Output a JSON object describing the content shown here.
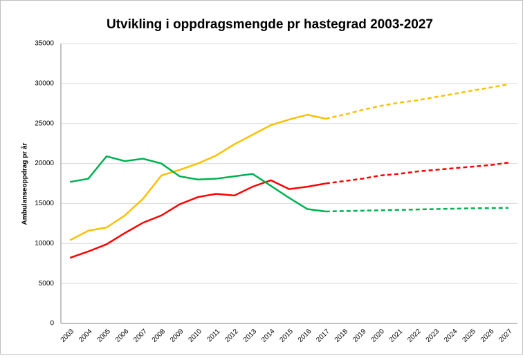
{
  "chart_data": {
    "type": "line",
    "title": "Utvikling i oppdragsmengde pr hastegrad 2003-2027",
    "y_label": "Ambulanseoppdrag pr år",
    "categories": [
      "2003",
      "2004",
      "2005",
      "2006",
      "2007",
      "2008",
      "2009",
      "2010",
      "2011",
      "2012",
      "2013",
      "2014",
      "2015",
      "2016",
      "2017",
      "2018",
      "2019",
      "2020",
      "2021",
      "2022",
      "2023",
      "2024",
      "2025",
      "2026",
      "2027"
    ],
    "dashed_from": "2017",
    "series": [
      {
        "color": "#ffc000",
        "values": [
          10400,
          11600,
          12000,
          13500,
          15600,
          18500,
          19200,
          20000,
          21000,
          22400,
          23600,
          24800,
          25500,
          26100,
          25600,
          26100,
          26700,
          27200,
          27600,
          27900,
          28300,
          28700,
          29100,
          29500,
          29900
        ]
      },
      {
        "color": "#ff0000",
        "values": [
          8200,
          9000,
          9900,
          11300,
          12600,
          13500,
          14900,
          15800,
          16200,
          16000,
          17100,
          17900,
          16800,
          17100,
          17500,
          17800,
          18100,
          18500,
          18700,
          19000,
          19200,
          19400,
          19600,
          19800,
          20100
        ]
      },
      {
        "color": "#00b050",
        "values": [
          17700,
          18100,
          20900,
          20300,
          20600,
          20000,
          18400,
          18000,
          18100,
          18400,
          18700,
          17200,
          15700,
          14300,
          14000,
          14050,
          14100,
          14150,
          14200,
          14250,
          14300,
          14350,
          14400,
          14420,
          14450
        ]
      }
    ],
    "ylim": [
      0,
      35000
    ],
    "yticks": [
      0,
      5000,
      10000,
      15000,
      20000,
      25000,
      30000,
      35000
    ],
    "grid": true
  }
}
